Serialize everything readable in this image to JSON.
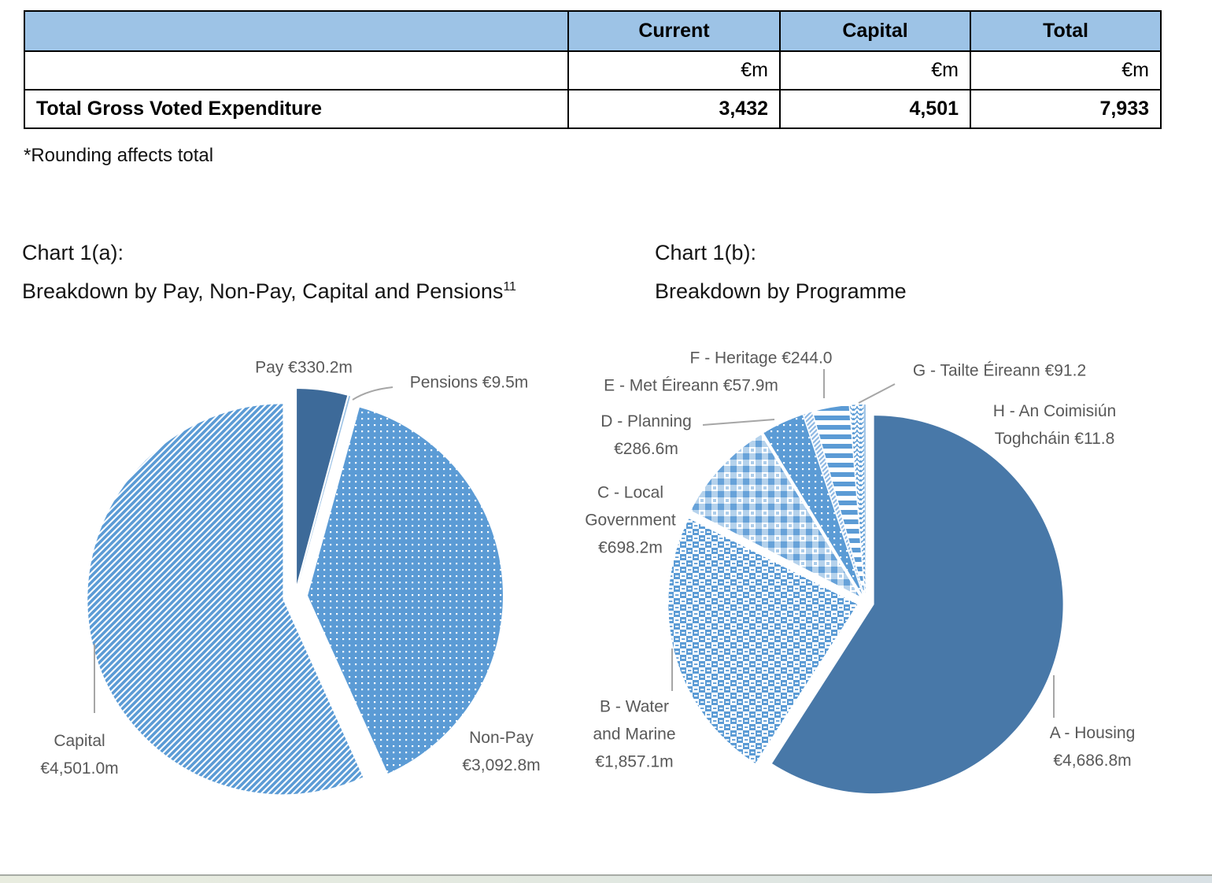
{
  "page": {
    "background": "#FFFFFF",
    "footnote": "*Rounding affects total"
  },
  "colors": {
    "accent_blue": "#5B9BD5",
    "dark_blue": "#3D6A99",
    "steel_blue": "#4878A8",
    "light_blue": "#9DC3E6",
    "table_header_bg": "#9DC3E6",
    "label_gray": "#595959",
    "leader_gray": "#A6A6A6"
  },
  "table": {
    "columns": [
      "Current",
      "Capital",
      "Total"
    ],
    "unit_label": "€m",
    "rows": [
      {
        "label": "Total Gross Voted Expenditure",
        "values": [
          "3,432",
          "4,501",
          "7,933"
        ]
      }
    ]
  },
  "chart_a": {
    "title_line1": "Chart 1(a):",
    "title_line2": "Breakdown by Pay, Non-Pay, Capital and Pensions",
    "title_footnote_ref": "11"
  },
  "chart_b": {
    "title_line1": "Chart 1(b):",
    "title_line2": "Breakdown by Programme"
  },
  "chart_data": [
    {
      "type": "pie",
      "title": "Breakdown by Pay, Non-Pay, Capital and Pensions",
      "unit": "€m",
      "total": 7933.5,
      "start_angle_deg": 0,
      "clockwise": true,
      "exploded": true,
      "legend_position": "callout-labels",
      "slices": [
        {
          "label": "Pay",
          "value": 330.2,
          "display": [
            "Pay €330.2m"
          ],
          "pattern": "solid-dark-blue"
        },
        {
          "label": "Pensions",
          "value": 9.5,
          "display": [
            "Pensions €9.5m"
          ],
          "pattern": "solid-light-blue"
        },
        {
          "label": "Non-Pay",
          "value": 3092.8,
          "display": [
            "Non-Pay",
            "€3,092.8m"
          ],
          "pattern": "white-dots-on-blue"
        },
        {
          "label": "Capital",
          "value": 4501.0,
          "display": [
            "Capital",
            "€4,501.0m"
          ],
          "pattern": "diagonal-stripes"
        }
      ]
    },
    {
      "type": "pie",
      "title": "Breakdown by Programme",
      "unit": "€m",
      "total": 7933.6,
      "start_angle_deg": 0,
      "clockwise": true,
      "exploded": true,
      "legend_position": "callout-labels",
      "slices": [
        {
          "label": "A - Housing",
          "value": 4686.8,
          "display": [
            "A - Housing",
            "€4,686.8m"
          ],
          "pattern": "solid-steel-blue"
        },
        {
          "label": "B - Water and Marine",
          "value": 1857.1,
          "display": [
            "B - Water",
            "and Marine",
            "€1,857.1m"
          ],
          "pattern": "checkerboard"
        },
        {
          "label": "C - Local Government",
          "value": 698.2,
          "display": [
            "C - Local",
            "Government",
            "€698.2m"
          ],
          "pattern": "plaid"
        },
        {
          "label": "D - Planning",
          "value": 286.6,
          "display": [
            "D - Planning",
            "€286.6m"
          ],
          "pattern": "white-dots-on-blue"
        },
        {
          "label": "E - Met Éireann",
          "value": 57.9,
          "display": [
            "E - Met Éireann €57.9m"
          ],
          "pattern": "thin-diagonal"
        },
        {
          "label": "F - Heritage",
          "value": 244.0,
          "display": [
            "F - Heritage €244.0"
          ],
          "pattern": "horizontal-stripes"
        },
        {
          "label": "G - Tailte Éireann",
          "value": 91.2,
          "display": [
            "G - Tailte Éireann €91.2"
          ],
          "pattern": "scallop"
        },
        {
          "label": "H - An Coimisiún Toghcháin",
          "value": 11.8,
          "display": [
            "H - An Coimisiún",
            "Toghcháin €11.8"
          ],
          "pattern": "solid-light-blue"
        }
      ]
    }
  ]
}
